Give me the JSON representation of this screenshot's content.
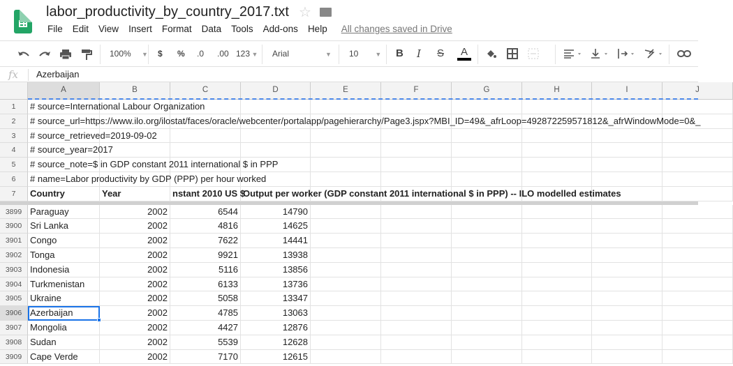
{
  "app": {
    "title": "labor_productivity_by_country_2017.txt",
    "star_icon": "star-icon",
    "folder_icon": "folder-icon",
    "saved_status": "All changes saved in Drive"
  },
  "menu": [
    "File",
    "Edit",
    "View",
    "Insert",
    "Format",
    "Data",
    "Tools",
    "Add-ons",
    "Help"
  ],
  "toolbar": {
    "zoom": "100%",
    "currency": "$",
    "percent": "%",
    "dec_decrease": ".0",
    "dec_increase": ".00",
    "more_formats": "123",
    "font": "Arial",
    "font_size": "10",
    "bold": "B",
    "italic": "I",
    "strike": "S",
    "text_color": "A",
    "text_color_value": "#000000"
  },
  "formula_bar": {
    "fx": "fx",
    "value": "Azerbaijan"
  },
  "columns": [
    "A",
    "B",
    "C",
    "D",
    "E",
    "F",
    "G",
    "H",
    "I",
    "J"
  ],
  "frozen_rows": [
    {
      "n": "1",
      "cells": [
        "# source=International Labour Organization"
      ]
    },
    {
      "n": "2",
      "cells": [
        "# source_url=https://www.ilo.org/ilostat/faces/oracle/webcenter/portalapp/pagehierarchy/Page3.jspx?MBI_ID=49&_afrLoop=492872259571812&_afrWindowMode=0&_"
      ]
    },
    {
      "n": "3",
      "cells": [
        "# source_retrieved=2019-09-02"
      ]
    },
    {
      "n": "4",
      "cells": [
        "# source_year=2017"
      ]
    },
    {
      "n": "5",
      "cells": [
        "# source_note=$ in GDP constant 2011 international $ in PPP"
      ]
    },
    {
      "n": "6",
      "cells": [
        "# name=Labor productivity by GDP (PPP) per hour worked"
      ]
    },
    {
      "n": "7",
      "cells": [
        "Country",
        "Year",
        "nstant 2010 US $",
        "Output per worker (GDP constant 2011 international $ in PPP) -- ILO modelled estimates"
      ]
    }
  ],
  "rows": [
    {
      "n": "3899",
      "cells": [
        "Paraguay",
        "2002",
        "6544",
        "14790"
      ]
    },
    {
      "n": "3900",
      "cells": [
        "Sri Lanka",
        "2002",
        "4816",
        "14625"
      ]
    },
    {
      "n": "3901",
      "cells": [
        "Congo",
        "2002",
        "7622",
        "14441"
      ]
    },
    {
      "n": "3902",
      "cells": [
        "Tonga",
        "2002",
        "9921",
        "13938"
      ]
    },
    {
      "n": "3903",
      "cells": [
        "Indonesia",
        "2002",
        "5116",
        "13856"
      ]
    },
    {
      "n": "3904",
      "cells": [
        "Turkmenistan",
        "2002",
        "6133",
        "13736"
      ]
    },
    {
      "n": "3905",
      "cells": [
        "Ukraine",
        "2002",
        "5058",
        "13347"
      ]
    },
    {
      "n": "3906",
      "cells": [
        "Azerbaijan",
        "2002",
        "4785",
        "13063"
      ]
    },
    {
      "n": "3907",
      "cells": [
        "Mongolia",
        "2002",
        "4427",
        "12876"
      ]
    },
    {
      "n": "3908",
      "cells": [
        "Sudan",
        "2002",
        "5539",
        "12628"
      ]
    },
    {
      "n": "3909",
      "cells": [
        "Cape Verde",
        "2002",
        "7170",
        "12615"
      ]
    }
  ],
  "selected_cell": "A3906",
  "colors": {
    "selection": "#1a73e8",
    "logo": "#23a566"
  }
}
